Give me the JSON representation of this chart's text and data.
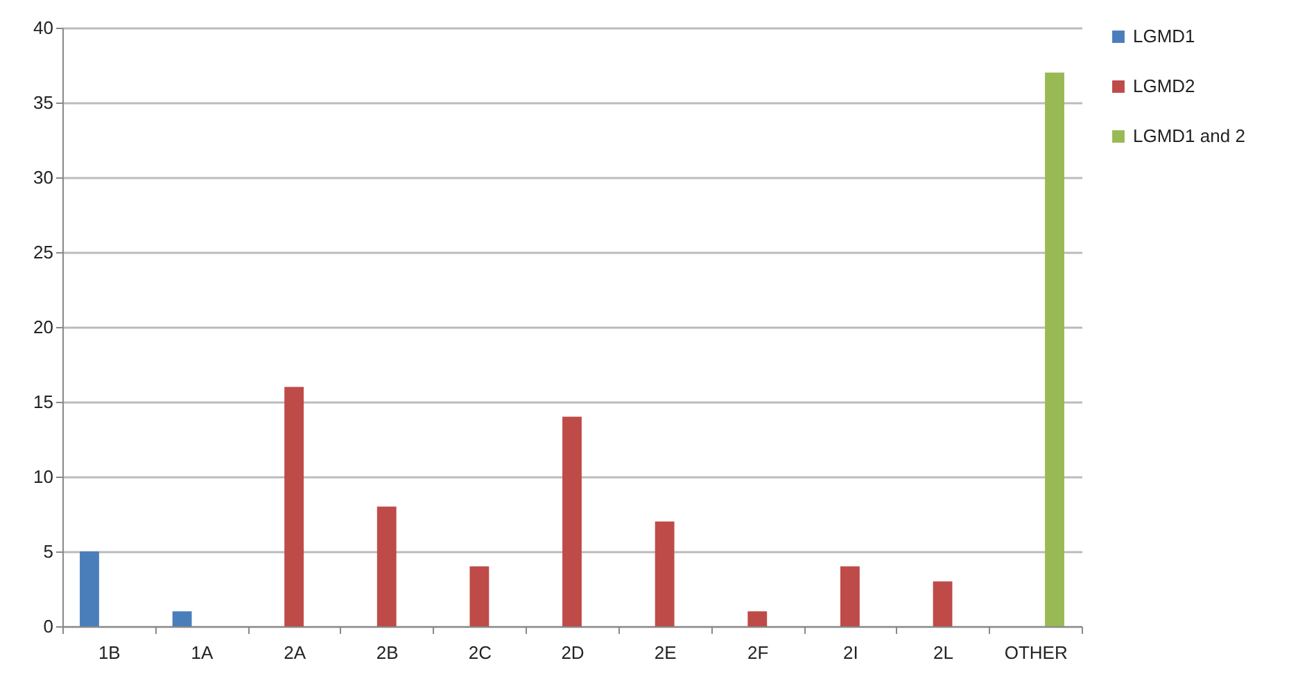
{
  "chart_data": {
    "type": "bar",
    "categories": [
      "1B",
      "1A",
      "2A",
      "2B",
      "2C",
      "2D",
      "2E",
      "2F",
      "2I",
      "2L",
      "OTHER"
    ],
    "series": [
      {
        "name": "LGMD1",
        "color": "#4a7ebb",
        "values": [
          5,
          1,
          null,
          null,
          null,
          null,
          null,
          null,
          null,
          null,
          null
        ]
      },
      {
        "name": "LGMD2",
        "color": "#be4b48",
        "values": [
          null,
          null,
          16,
          8,
          4,
          14,
          7,
          1,
          4,
          3,
          null
        ]
      },
      {
        "name": "LGMD1 and 2",
        "color": "#98b954",
        "values": [
          null,
          null,
          null,
          null,
          null,
          null,
          null,
          null,
          null,
          null,
          37
        ]
      }
    ],
    "ylim": [
      0,
      40
    ],
    "yticks": [
      0,
      5,
      10,
      15,
      20,
      25,
      30,
      35,
      40
    ],
    "grid": "y",
    "legend": "right"
  }
}
